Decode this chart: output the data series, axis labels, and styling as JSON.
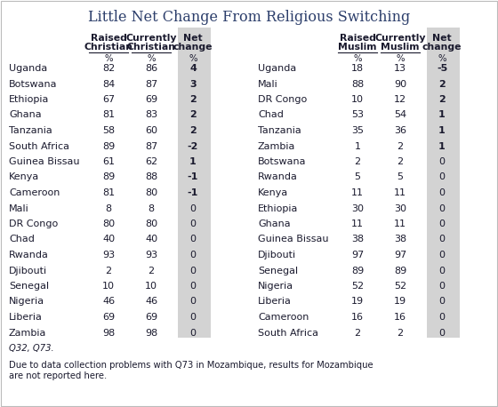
{
  "title": "Little Net Change From Religious Switching",
  "christian_data": [
    [
      "Uganda",
      82,
      86,
      4
    ],
    [
      "Botswana",
      84,
      87,
      3
    ],
    [
      "Ethiopia",
      67,
      69,
      2
    ],
    [
      "Ghana",
      81,
      83,
      2
    ],
    [
      "Tanzania",
      58,
      60,
      2
    ],
    [
      "South Africa",
      89,
      87,
      -2
    ],
    [
      "Guinea Bissau",
      61,
      62,
      1
    ],
    [
      "Kenya",
      89,
      88,
      -1
    ],
    [
      "Cameroon",
      81,
      80,
      -1
    ],
    [
      "Mali",
      8,
      8,
      0
    ],
    [
      "DR Congo",
      80,
      80,
      0
    ],
    [
      "Chad",
      40,
      40,
      0
    ],
    [
      "Rwanda",
      93,
      93,
      0
    ],
    [
      "Djibouti",
      2,
      2,
      0
    ],
    [
      "Senegal",
      10,
      10,
      0
    ],
    [
      "Nigeria",
      46,
      46,
      0
    ],
    [
      "Liberia",
      69,
      69,
      0
    ],
    [
      "Zambia",
      98,
      98,
      0
    ]
  ],
  "muslim_data": [
    [
      "Uganda",
      18,
      13,
      -5
    ],
    [
      "Mali",
      88,
      90,
      2
    ],
    [
      "DR Congo",
      10,
      12,
      2
    ],
    [
      "Chad",
      53,
      54,
      1
    ],
    [
      "Tanzania",
      35,
      36,
      1
    ],
    [
      "Zambia",
      1,
      2,
      1
    ],
    [
      "Botswana",
      2,
      2,
      0
    ],
    [
      "Rwanda",
      5,
      5,
      0
    ],
    [
      "Kenya",
      11,
      11,
      0
    ],
    [
      "Ethiopia",
      30,
      30,
      0
    ],
    [
      "Ghana",
      11,
      11,
      0
    ],
    [
      "Guinea Bissau",
      38,
      38,
      0
    ],
    [
      "Djibouti",
      97,
      97,
      0
    ],
    [
      "Senegal",
      89,
      89,
      0
    ],
    [
      "Nigeria",
      52,
      52,
      0
    ],
    [
      "Liberia",
      19,
      19,
      0
    ],
    [
      "Cameroon",
      16,
      16,
      0
    ],
    [
      "South Africa",
      2,
      2,
      0
    ]
  ],
  "footnote1": "Q32, Q73.",
  "footnote2": "Due to data collection problems with Q73 in Mozambique, results for Mozambique\nare not reported here.",
  "bg_color": "#ffffff",
  "net_change_bg": "#d3d3d3",
  "text_color": "#1a1a2e",
  "title_color": "#2c3e6b",
  "header_color": "#1a1a2e",
  "title_fontsize": 11.5,
  "header_fontsize": 7.8,
  "data_fontsize": 8.0,
  "footnote_fontsize": 7.2
}
